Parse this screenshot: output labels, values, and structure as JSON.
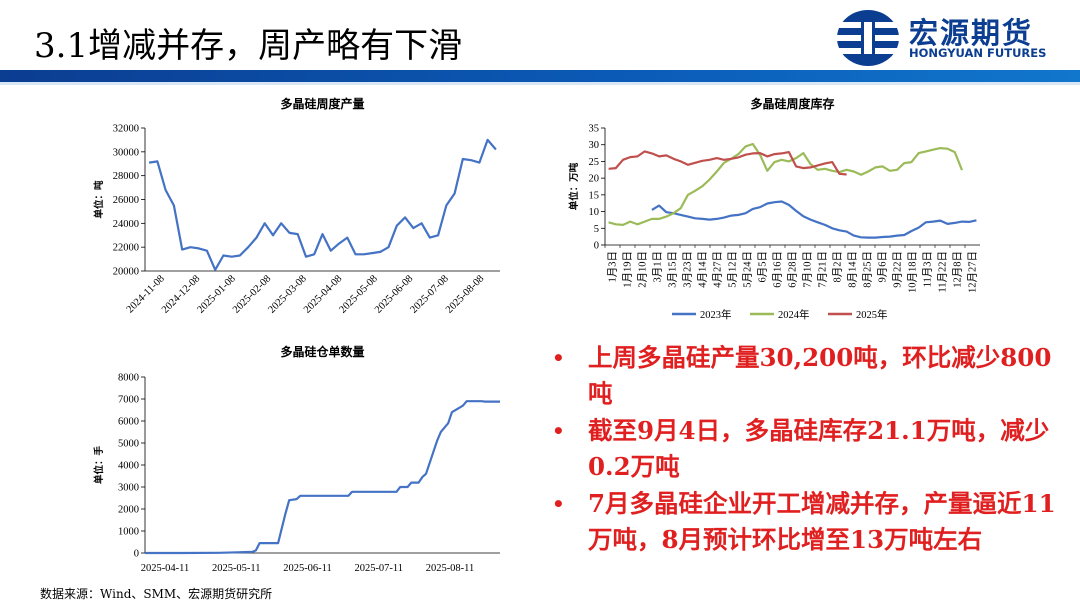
{
  "header": {
    "title": "3.1增减并存，周产略有下滑",
    "logo_cn": "宏源期货",
    "logo_en": "HONGYUAN FUTURES"
  },
  "bullets": [
    "上周多晶硅产量30,200吨，环比减少800吨",
    "截至9月4日，多晶硅库存21.1万吨，减少0.2万吨",
    "7月多晶硅企业开工增减并存，产量逼近11万吨，8月预计环比增至13万吨左右"
  ],
  "source": "数据来源：Wind、SMM、宏源期货研究所",
  "colors": {
    "line_blue": "#4472c4",
    "line_green": "#9bbb59",
    "line_red": "#c0504d",
    "bullet_red": "#e02020",
    "brand_blue": "#0b3d91"
  },
  "chart_data": [
    {
      "type": "line",
      "title": "多晶硅周度产量",
      "ylabel": "单位：吨",
      "ylim": [
        20000,
        32000
      ],
      "yticks": [
        20000,
        22000,
        24000,
        26000,
        28000,
        30000,
        32000
      ],
      "x_tick_labels": [
        "2024-11-08",
        "2024-12-08",
        "2025-01-08",
        "2025-02-08",
        "2025-03-08",
        "2025-04-08",
        "2025-05-08",
        "2025-06-08",
        "2025-07-08",
        "2025-08-08"
      ],
      "series": [
        {
          "values": [
            29100,
            29200,
            26800,
            25500,
            21800,
            22000,
            21900,
            21700,
            20100,
            21300,
            21200,
            21300,
            22000,
            22800,
            24000,
            23000,
            24000,
            23200,
            23100,
            21200,
            21400,
            23100,
            21700,
            22300,
            22800,
            21400,
            21400,
            21500,
            21600,
            22000,
            23800,
            24500,
            23600,
            24000,
            22800,
            23000,
            25500,
            26500,
            29400,
            29300,
            29100,
            31000,
            30200
          ]
        }
      ]
    },
    {
      "type": "line",
      "title": "多晶硅周度库存",
      "ylabel": "单位：万吨",
      "ylim": [
        0,
        35
      ],
      "yticks": [
        0,
        5,
        10,
        15,
        20,
        25,
        30,
        35
      ],
      "x_tick_labels": [
        "1月3日",
        "1月19日",
        "2月10日",
        "3月1日",
        "3月15日",
        "3月23日",
        "4月14日",
        "4月27日",
        "5月12日",
        "5月24日",
        "6月5日",
        "6月16日",
        "6月28日",
        "7月10日",
        "7月21日",
        "8月2日",
        "8月14日",
        "8月25日",
        "9月6日",
        "9月22日",
        "10月18日",
        "11月3日",
        "11月22日",
        "12月8日",
        "12月27日"
      ],
      "legend": [
        "2023年",
        "2024年",
        "2025年"
      ],
      "legend_position": "bottom",
      "series": [
        {
          "name": "2023年",
          "values": [
            null,
            null,
            null,
            null,
            null,
            null,
            10.5,
            11.8,
            9.8,
            9.5,
            9.0,
            8.5,
            8.0,
            7.8,
            7.6,
            7.8,
            8.2,
            8.8,
            9.0,
            9.5,
            10.8,
            11.3,
            12.4,
            12.8,
            13.0,
            12.0,
            10.2,
            8.6,
            7.6,
            6.8,
            6.0,
            5.0,
            4.4,
            4.0,
            2.8,
            2.3,
            2.2,
            2.2,
            2.4,
            2.5,
            2.8,
            3.0,
            4.2,
            5.2,
            6.8,
            7.0,
            7.3,
            6.3,
            6.6,
            7.0,
            6.9,
            7.4
          ]
        },
        {
          "name": "2024年",
          "values": [
            6.8,
            6.2,
            6.0,
            7.0,
            6.2,
            7.0,
            7.8,
            7.8,
            8.5,
            9.5,
            11.0,
            15.0,
            16.2,
            17.6,
            19.6,
            22.0,
            24.6,
            25.8,
            27.2,
            29.5,
            30.2,
            27.0,
            22.2,
            24.8,
            25.5,
            25.0,
            26.0,
            27.5,
            24.2,
            22.5,
            22.8,
            22.2,
            21.8,
            22.5,
            22.0,
            21.0,
            22.0,
            23.2,
            23.5,
            22.2,
            22.5,
            24.5,
            24.8,
            27.5,
            28.0,
            28.5,
            29.0,
            28.8,
            27.8,
            22.4
          ]
        },
        {
          "name": "2025年",
          "values": [
            22.8,
            23.0,
            25.5,
            26.3,
            26.5,
            28.0,
            27.4,
            26.5,
            26.8,
            25.8,
            25.0,
            24.0,
            24.6,
            25.2,
            25.5,
            26.0,
            25.5,
            25.8,
            26.2,
            27.0,
            27.4,
            27.5,
            26.5,
            27.2,
            27.4,
            27.8,
            23.5,
            23.0,
            23.2,
            23.8,
            24.4,
            24.8,
            21.3,
            21.1
          ]
        }
      ]
    },
    {
      "type": "line",
      "title": "多晶硅仓单数量",
      "ylabel": "单位：手",
      "ylim": [
        0,
        8000
      ],
      "yticks": [
        0,
        1000,
        2000,
        3000,
        4000,
        5000,
        6000,
        7000,
        8000
      ],
      "x_tick_labels": [
        "2025-04-11",
        "2025-05-11",
        "2025-06-11",
        "2025-07-11",
        "2025-08-11"
      ],
      "series": [
        {
          "points": [
            [
              0,
              0
            ],
            [
              10,
              0
            ],
            [
              20,
              10
            ],
            [
              25,
              30
            ],
            [
              29,
              50
            ],
            [
              30,
              120
            ],
            [
              31,
              450
            ],
            [
              36,
              450
            ],
            [
              38,
              1800
            ],
            [
              39,
              2400
            ],
            [
              41,
              2450
            ],
            [
              42,
              2600
            ],
            [
              55,
              2600
            ],
            [
              56,
              2780
            ],
            [
              68,
              2780
            ],
            [
              69,
              3000
            ],
            [
              71,
              3000
            ],
            [
              72,
              3200
            ],
            [
              74,
              3200
            ],
            [
              75,
              3450
            ],
            [
              76,
              3600
            ],
            [
              78,
              4600
            ],
            [
              79,
              5100
            ],
            [
              80,
              5500
            ],
            [
              81,
              5700
            ],
            [
              82,
              5900
            ],
            [
              83,
              6400
            ],
            [
              85,
              6600
            ],
            [
              86,
              6700
            ],
            [
              87,
              6900
            ],
            [
              91,
              6900
            ],
            [
              92,
              6880
            ],
            [
              96,
              6880
            ]
          ]
        }
      ]
    }
  ]
}
